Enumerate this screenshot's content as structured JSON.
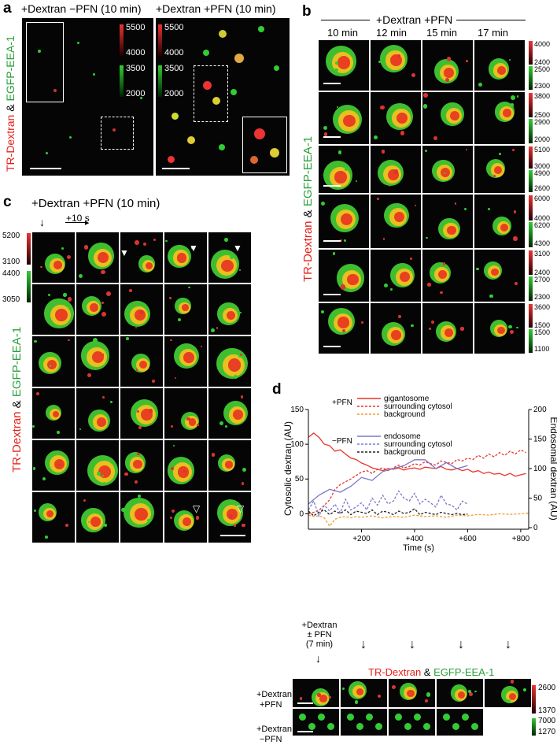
{
  "panel_a": {
    "label": "a",
    "title_left": "+Dextran −PFN (10 min)",
    "title_right": "+Dextran +PFN (10 min)",
    "ylabel_red": "TR-Dextran",
    "ylabel_amp": " & ",
    "ylabel_green": "EGFP-EEA-1",
    "left_red_scale": [
      "5500",
      "4000"
    ],
    "left_green_scale": [
      "3500",
      "2000"
    ],
    "right_red_scale": [
      "5500",
      "4000"
    ],
    "right_green_scale": [
      "3500",
      "2000"
    ]
  },
  "panel_b": {
    "label": "b",
    "title": "+Dextran +PFN",
    "columns": [
      "10 min",
      "12 min",
      "15 min",
      "17 min"
    ],
    "ylabel_red": "TR-Dextran",
    "ylabel_amp": " & ",
    "ylabel_green": "EGFP-EEA-1",
    "row_scales": [
      {
        "red": [
          "4000",
          "2400"
        ],
        "green": [
          "2500",
          "2300"
        ]
      },
      {
        "red": [
          "3800",
          "2500"
        ],
        "green": [
          "2900",
          "2000"
        ]
      },
      {
        "red": [
          "5100",
          "3000"
        ],
        "green": [
          "4900",
          "2600"
        ]
      },
      {
        "red": [
          "6000",
          "4000"
        ],
        "green": [
          "6200",
          "4300"
        ]
      },
      {
        "red": [
          "3100",
          "2400"
        ],
        "green": [
          "2700",
          "2300"
        ]
      },
      {
        "red": [
          "3600",
          "1500"
        ],
        "green": [
          "1500",
          "1100"
        ]
      }
    ]
  },
  "panel_c": {
    "label": "c",
    "title": "+Dextran +PFN (10 min)",
    "step": "+10 s",
    "red_scale": [
      "5200",
      "3100"
    ],
    "green_scale": [
      "4400",
      "3050"
    ],
    "ylabel_red": "TR-Dextran",
    "ylabel_amp": " & ",
    "ylabel_green": "EGFP-EEA-1"
  },
  "panel_d": {
    "label": "d",
    "legend_pfn_plus": "+PFN",
    "legend_pfn_minus": "−PFN",
    "legend_plus_items": [
      "gigantosome",
      "surrounding cytosol",
      "background"
    ],
    "legend_minus_items": [
      "endosome",
      "surrounding cytosol",
      "background"
    ],
    "micro_title_red": "TR-Dextran",
    "micro_title_amp": " & ",
    "micro_title_green": "EGFP-EEA-1",
    "row1_label": [
      "+Dextran",
      "+PFN"
    ],
    "row2_label": [
      "+Dextran",
      "−PFN"
    ],
    "row1_red_scale": [
      "2600",
      "1370"
    ],
    "row2_green_scale": [
      "7000",
      "1270"
    ],
    "time_labels": [
      "+Dextran",
      "± PFN",
      "(7 min)"
    ],
    "colors": {
      "gigantosome": "#e8332b",
      "surrounding_plus": "#e8332b",
      "background_plus": "#f29a2e",
      "endosome": "#7b78c8",
      "surrounding_minus": "#7b78c8",
      "background_minus": "#222222"
    }
  },
  "chart_data": {
    "type": "line",
    "xlabel": "Time (s)",
    "ylabel": "Cytosolic dextran (AU)",
    "ylabel_right": "Endosomal dextran (AU)",
    "x_ticks": [
      "+200",
      "+400",
      "+600",
      "+800"
    ],
    "y_ticks_left": [
      "0",
      "50",
      "100",
      "150"
    ],
    "y_ticks_right": [
      "0",
      "50",
      "100",
      "150",
      "200"
    ],
    "xlim": [
      0,
      830
    ],
    "ylim_left": [
      -20,
      150
    ],
    "ylim_right": [
      0,
      200
    ],
    "series": [
      {
        "name": "gigantosome (+PFN)",
        "axis": "left",
        "style": "solid",
        "color": "#e8332b",
        "x": [
          0,
          20,
          40,
          60,
          80,
          100,
          120,
          140,
          160,
          180,
          200,
          220,
          240,
          260,
          280,
          300,
          320,
          340,
          360,
          380,
          400,
          420,
          440,
          460,
          480,
          500,
          520,
          540,
          560,
          580,
          600,
          620,
          640,
          660,
          680,
          700,
          720,
          740,
          760,
          780,
          800,
          820
        ],
        "values": [
          110,
          116,
          110,
          100,
          98,
          90,
          92,
          86,
          80,
          78,
          73,
          70,
          66,
          64,
          62,
          65,
          64,
          66,
          63,
          65,
          66,
          64,
          67,
          66,
          65,
          68,
          64,
          63,
          65,
          62,
          64,
          60,
          62,
          58,
          60,
          57,
          58,
          55,
          58,
          54,
          56,
          58
        ]
      },
      {
        "name": "surrounding cytosol (+PFN)",
        "axis": "left",
        "style": "dashed",
        "color": "#e8332b",
        "x": [
          0,
          20,
          40,
          60,
          80,
          100,
          120,
          140,
          160,
          180,
          200,
          220,
          240,
          260,
          280,
          300,
          320,
          340,
          360,
          380,
          400,
          420,
          440,
          460,
          480,
          500,
          520,
          540,
          560,
          580,
          600,
          620,
          640,
          660,
          680,
          700,
          720,
          740,
          760,
          780,
          800,
          820
        ],
        "values": [
          0,
          2,
          5,
          12,
          20,
          35,
          42,
          46,
          50,
          55,
          60,
          62,
          58,
          64,
          66,
          62,
          66,
          70,
          66,
          68,
          72,
          70,
          75,
          72,
          70,
          76,
          74,
          72,
          78,
          76,
          80,
          78,
          84,
          80,
          86,
          82,
          88,
          84,
          90,
          86,
          92,
          88
        ]
      },
      {
        "name": "background (+PFN)",
        "axis": "left",
        "style": "dashed",
        "color": "#f29a2e",
        "x": [
          0,
          20,
          40,
          60,
          80,
          100,
          120,
          140,
          160,
          180,
          200,
          240,
          280,
          320,
          360,
          400,
          440,
          480,
          520,
          560,
          600,
          640,
          680,
          720,
          760,
          800,
          830
        ],
        "values": [
          -2,
          -4,
          -3,
          -6,
          -18,
          -8,
          -5,
          -4,
          -6,
          -4,
          -5,
          -3,
          -6,
          -4,
          -5,
          -2,
          -4,
          -3,
          -5,
          -2,
          -3,
          -1,
          -2,
          0,
          -1,
          0,
          1
        ]
      },
      {
        "name": "endosome (−PFN)",
        "axis": "right",
        "style": "solid",
        "color": "#7b78c8",
        "x": [
          0,
          40,
          80,
          120,
          160,
          200,
          240,
          280,
          320,
          360,
          400,
          440,
          480,
          520,
          560,
          600
        ],
        "values": [
          40,
          55,
          65,
          60,
          70,
          85,
          80,
          95,
          100,
          105,
          115,
          115,
          100,
          110,
          100,
          105
        ]
      },
      {
        "name": "surrounding cytosol (−PFN)",
        "axis": "right",
        "style": "dashed",
        "color": "#7b78c8",
        "x": [
          0,
          20,
          40,
          60,
          80,
          100,
          120,
          140,
          160,
          180,
          200,
          220,
          240,
          260,
          280,
          300,
          320,
          340,
          360,
          380,
          400,
          420,
          440,
          460,
          480,
          500,
          520,
          540,
          560,
          580,
          600
        ],
        "values": [
          30,
          45,
          20,
          38,
          28,
          40,
          25,
          48,
          30,
          35,
          42,
          30,
          50,
          38,
          55,
          40,
          45,
          62,
          50,
          45,
          58,
          40,
          48,
          42,
          35,
          55,
          40,
          38,
          30,
          45,
          40
        ]
      },
      {
        "name": "background (−PFN)",
        "axis": "right",
        "style": "dashed",
        "color": "#222222",
        "x": [
          0,
          20,
          40,
          60,
          80,
          100,
          120,
          140,
          160,
          180,
          200,
          220,
          240,
          260,
          280,
          300,
          320,
          340,
          360,
          380,
          400,
          420,
          440,
          460,
          480,
          500,
          520,
          540,
          560,
          580,
          600
        ],
        "values": [
          28,
          20,
          26,
          30,
          22,
          28,
          24,
          30,
          22,
          28,
          26,
          24,
          30,
          22,
          28,
          26,
          22,
          28,
          24,
          26,
          32,
          22,
          26,
          24,
          22,
          26,
          24,
          22,
          24,
          22,
          23
        ]
      }
    ]
  }
}
